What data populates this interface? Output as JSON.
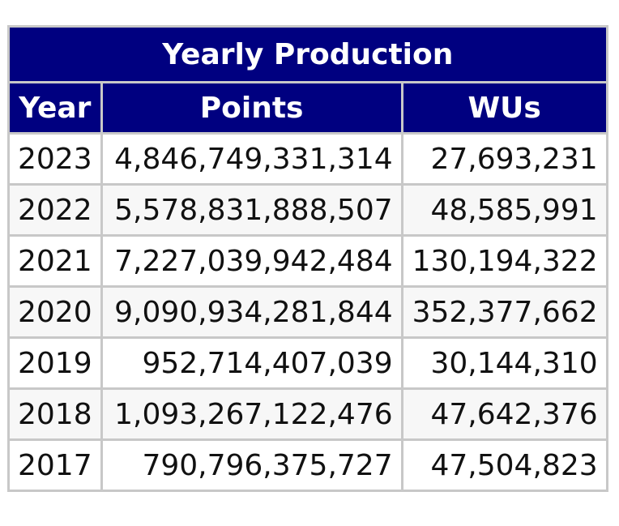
{
  "table": {
    "title": "Yearly Production",
    "headers": [
      "Year",
      "Points",
      "WUs"
    ],
    "rows": [
      [
        "2023",
        "4,846,749,331,314",
        "27,693,231"
      ],
      [
        "2022",
        "5,578,831,888,507",
        "48,585,991"
      ],
      [
        "2021",
        "7,227,039,942,484",
        "130,194,322"
      ],
      [
        "2020",
        "9,090,934,281,844",
        "352,377,662"
      ],
      [
        "2019",
        "952,714,407,039",
        "30,144,310"
      ],
      [
        "2018",
        "1,093,267,122,476",
        "47,642,376"
      ],
      [
        "2017",
        "790,796,375,727",
        "47,504,823"
      ]
    ]
  },
  "colors": {
    "header_bg": "#000080",
    "header_text": "#ffffff",
    "border": "#c8c8c8",
    "alt_row_bg": "#f7f7f7"
  }
}
